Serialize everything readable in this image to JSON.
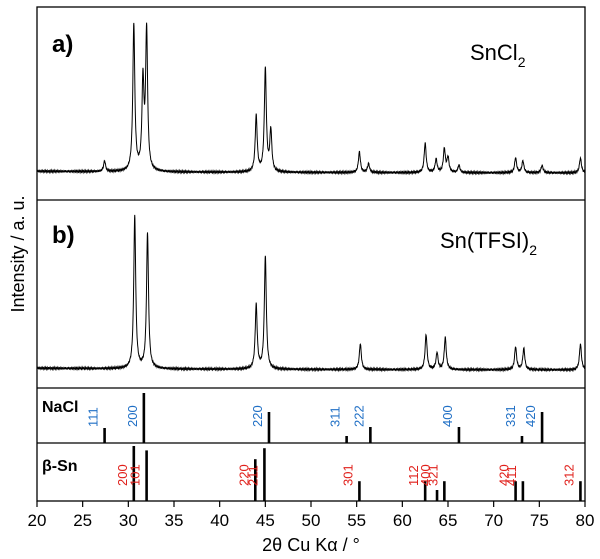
{
  "chart_data": {
    "type": "line",
    "xlabel": "2θ Cu Kα / °",
    "ylabel": "Intensity / a. u.",
    "xlim": [
      20,
      80
    ],
    "xticks": [
      "20",
      "25",
      "30",
      "35",
      "40",
      "45",
      "50",
      "55",
      "60",
      "65",
      "70",
      "75",
      "80"
    ],
    "colors": {
      "nacl_hkl": "#1f6fc5",
      "sn_hkl": "#e0201b",
      "trace": "#000000"
    },
    "panels": [
      {
        "label": "a)",
        "sample": "SnCl",
        "sample_sub": "2",
        "sample_suffix": "",
        "peaks": [
          {
            "x": 27.4,
            "h": 0.07
          },
          {
            "x": 30.6,
            "h": 1.0
          },
          {
            "x": 31.6,
            "h": 0.6
          },
          {
            "x": 32.0,
            "h": 0.95
          },
          {
            "x": 44.0,
            "h": 0.38
          },
          {
            "x": 45.0,
            "h": 0.7
          },
          {
            "x": 45.6,
            "h": 0.28
          },
          {
            "x": 55.3,
            "h": 0.14
          },
          {
            "x": 56.3,
            "h": 0.06
          },
          {
            "x": 62.5,
            "h": 0.2
          },
          {
            "x": 63.7,
            "h": 0.09
          },
          {
            "x": 64.6,
            "h": 0.16
          },
          {
            "x": 65.0,
            "h": 0.1
          },
          {
            "x": 66.2,
            "h": 0.05
          },
          {
            "x": 72.4,
            "h": 0.1
          },
          {
            "x": 73.2,
            "h": 0.08
          },
          {
            "x": 75.3,
            "h": 0.05
          },
          {
            "x": 79.5,
            "h": 0.1
          }
        ]
      },
      {
        "label": "b)",
        "sample": "Sn(TFSI)",
        "sample_sub": "2",
        "sample_suffix": "",
        "peaks": [
          {
            "x": 30.7,
            "h": 1.0
          },
          {
            "x": 32.1,
            "h": 0.89
          },
          {
            "x": 44.0,
            "h": 0.42
          },
          {
            "x": 45.0,
            "h": 0.74
          },
          {
            "x": 55.4,
            "h": 0.17
          },
          {
            "x": 62.6,
            "h": 0.23
          },
          {
            "x": 63.8,
            "h": 0.11
          },
          {
            "x": 64.7,
            "h": 0.21
          },
          {
            "x": 72.4,
            "h": 0.15
          },
          {
            "x": 73.3,
            "h": 0.14
          },
          {
            "x": 79.5,
            "h": 0.17
          }
        ]
      }
    ],
    "references": [
      {
        "name": "NaCl",
        "reflections": [
          {
            "hkl": "111",
            "x": 27.4,
            "i": 0.3
          },
          {
            "hkl": "200",
            "x": 31.7,
            "i": 1.0
          },
          {
            "hkl": "220",
            "x": 45.4,
            "i": 0.62
          },
          {
            "hkl": "311",
            "x": 53.9,
            "i": 0.14
          },
          {
            "hkl": "222",
            "x": 56.5,
            "i": 0.32
          },
          {
            "hkl": "400",
            "x": 66.2,
            "i": 0.32
          },
          {
            "hkl": "331",
            "x": 73.1,
            "i": 0.14
          },
          {
            "hkl": "420",
            "x": 75.3,
            "i": 0.62
          }
        ]
      },
      {
        "name": "β-Sn",
        "reflections": [
          {
            "hkl": "200",
            "x": 30.6,
            "i": 1.0
          },
          {
            "hkl": "101",
            "x": 32.0,
            "i": 0.92
          },
          {
            "hkl": "220",
            "x": 43.9,
            "i": 0.76
          },
          {
            "hkl": "211",
            "x": 44.9,
            "i": 0.96
          },
          {
            "hkl": "301",
            "x": 55.3,
            "i": 0.36
          },
          {
            "hkl": "112",
            "x": 62.5,
            "i": 0.36
          },
          {
            "hkl": "400",
            "x": 63.8,
            "i": 0.2
          },
          {
            "hkl": "321",
            "x": 64.6,
            "i": 0.36
          },
          {
            "hkl": "420",
            "x": 72.4,
            "i": 0.36
          },
          {
            "hkl": "411",
            "x": 73.2,
            "i": 0.36
          },
          {
            "hkl": "312",
            "x": 79.5,
            "i": 0.36
          }
        ]
      }
    ]
  }
}
